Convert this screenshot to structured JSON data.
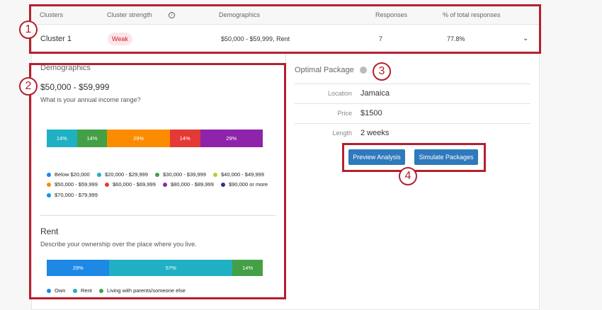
{
  "table": {
    "headers": [
      "Clusters",
      "Cluster strength",
      "Demographics",
      "Responses",
      "% of total responses"
    ],
    "row": {
      "cluster": "Cluster 1",
      "strength": "Weak",
      "demographics": "$50,000 - $59,999, Rent",
      "responses": "7",
      "percent": "77.8%"
    }
  },
  "demographics": {
    "title": "Demographics",
    "income": {
      "heading": "$50,000 - $59,999",
      "question": "What is your annual income range?",
      "segments": [
        {
          "label": "14%",
          "value": 14,
          "color": "#1fb0c4"
        },
        {
          "label": "14%",
          "value": 14,
          "color": "#43a047"
        },
        {
          "label": "29%",
          "value": 29,
          "color": "#fb8c00"
        },
        {
          "label": "14%",
          "value": 14,
          "color": "#e53935"
        },
        {
          "label": "29%",
          "value": 29,
          "color": "#8e24aa"
        }
      ],
      "legend": [
        {
          "label": "Below $20,000",
          "color": "#1e88e5"
        },
        {
          "label": "$20,000 - $29,999",
          "color": "#1fb0c4"
        },
        {
          "label": "$30,000 - $39,999",
          "color": "#43a047"
        },
        {
          "label": "$40,000 - $49,999",
          "color": "#c0ca33"
        },
        {
          "label": "$50,000 - $59,999",
          "color": "#fb8c00"
        },
        {
          "label": "$60,000 - $69,999",
          "color": "#e53935"
        },
        {
          "label": "$80,000 - $89,999",
          "color": "#8e24aa"
        },
        {
          "label": "$90,000 or more",
          "color": "#283593"
        },
        {
          "label": "$70,000 - $79,999",
          "color": "#039be5"
        }
      ]
    },
    "rent": {
      "heading": "Rent",
      "question": "Describe your ownership over the place where you live.",
      "segments": [
        {
          "label": "29%",
          "value": 29,
          "color": "#1e88e5"
        },
        {
          "label": "57%",
          "value": 57,
          "color": "#1fb0c4"
        },
        {
          "label": "14%",
          "value": 14,
          "color": "#43a047"
        }
      ],
      "legend": [
        {
          "label": "Own",
          "color": "#1e88e5"
        },
        {
          "label": "Rent",
          "color": "#1fb0c4"
        },
        {
          "label": "Living with parents/someone else",
          "color": "#43a047"
        }
      ]
    }
  },
  "package": {
    "title": "Optimal Package",
    "rows": [
      {
        "key": "Location",
        "value": "Jamaica"
      },
      {
        "key": "Price",
        "value": "$1500"
      },
      {
        "key": "Length",
        "value": "2 weeks"
      }
    ],
    "preview_label": "Preview Analysis",
    "simulate_label": "Simulate Packages"
  },
  "callouts": [
    "1",
    "2",
    "3",
    "4"
  ]
}
